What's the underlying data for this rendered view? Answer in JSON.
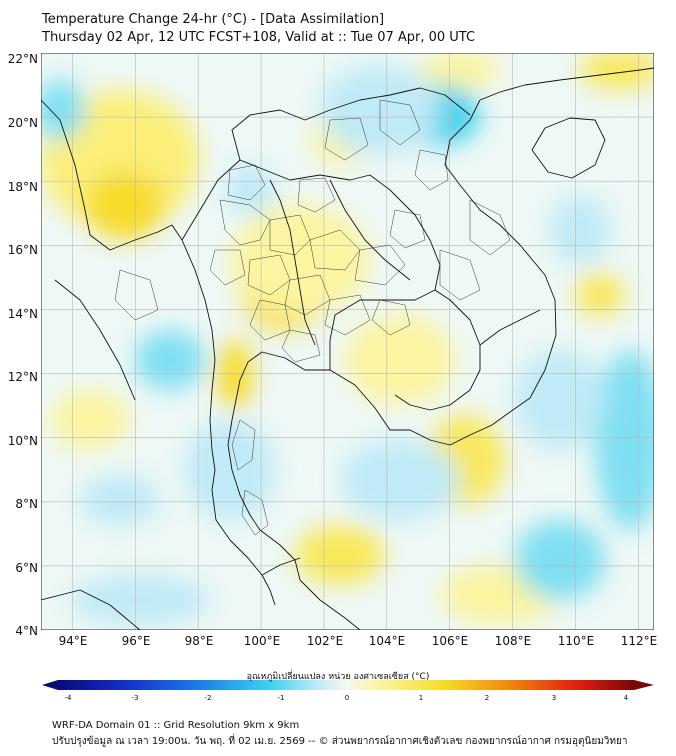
{
  "title": {
    "line1": "Temperature Change 24-hr (°C) - [Data Assimilation]",
    "line2": "Thursday 02 Apr, 12 UTC FCST+108, Valid at :: Tue 07 Apr, 00 UTC"
  },
  "map": {
    "lat_range": [
      4,
      22
    ],
    "lon_range": [
      93,
      112.5
    ],
    "lat_ticks": [
      "22°N",
      "20°N",
      "18°N",
      "16°N",
      "14°N",
      "12°N",
      "10°N",
      "8°N",
      "6°N",
      "4°N"
    ],
    "lon_ticks": [
      "94°E",
      "96°E",
      "98°E",
      "100°E",
      "102°E",
      "104°E",
      "106°E",
      "108°E",
      "110°E",
      "112°E"
    ],
    "anomaly_colors": {
      "warm_strong": "#f7dc2a",
      "warm": "#fbf4a0",
      "neutral": "#f4f8ee",
      "cool": "#bfeaf6",
      "cool_strong": "#3fd2f0",
      "border": "#111111",
      "grid": "#b8b8b8"
    }
  },
  "colorbar": {
    "label": "อุณหภูมิเปลี่ยนแปลง หน่วย องศาเซลเซียส (°C)",
    "ticks": [
      "-4",
      "-3",
      "-2",
      "-1",
      "0",
      "1",
      "2",
      "3",
      "4"
    ],
    "colors": [
      "#0a0a78",
      "#1530c8",
      "#1f80e8",
      "#3fd2f0",
      "#bfeaf6",
      "#f4f8ee",
      "#fbf4a0",
      "#f7dc2a",
      "#f08a10",
      "#e02010",
      "#780808"
    ]
  },
  "footer": {
    "line1": "WRF-DA Domain 01 :: Grid Resolution 9km x 9km",
    "line2": "ปรับปรุงข้อมูล ณ เวลา 19:00น. วัน พฤ. ที่ 02 เม.ย. 2569 -- © ส่วนพยากรณ์อากาศเชิงตัวเลข กองพยากรณ์อากาศ กรมอุตุนิยมวิทยา"
  }
}
